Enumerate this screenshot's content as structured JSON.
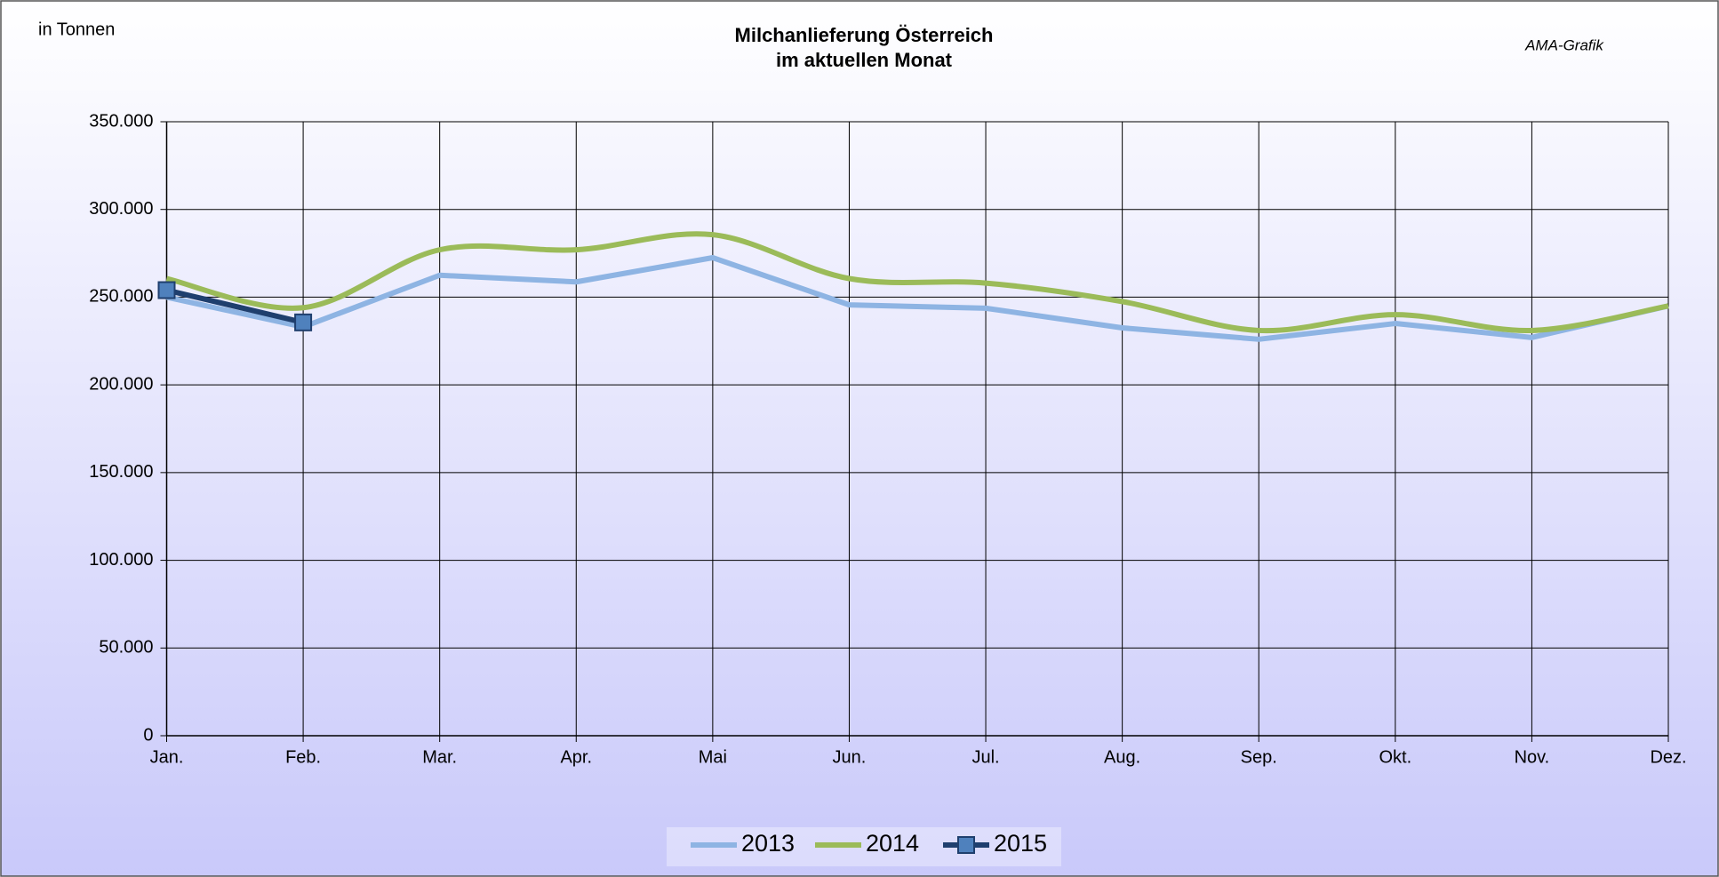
{
  "chart_data": {
    "type": "line",
    "title": [
      "Milchanlieferung Österreich",
      "im aktuellen Monat"
    ],
    "y_label": "in Tonnen",
    "annotation": "AMA-Grafik",
    "categories": [
      "Jan.",
      "Feb.",
      "Mar.",
      "Apr.",
      "Mai",
      "Jun.",
      "Jul.",
      "Aug.",
      "Sep.",
      "Okt.",
      "Nov.",
      "Dez."
    ],
    "series": [
      {
        "name": "2013",
        "color": "#8eb4e3",
        "smooth": false,
        "values": [
          250000,
          233000,
          262500,
          258700,
          272500,
          245600,
          243700,
          232500,
          226000,
          235000,
          227000,
          245000
        ]
      },
      {
        "name": "2014",
        "color": "#9bbb59",
        "smooth": true,
        "values": [
          260600,
          244000,
          277000,
          277000,
          285600,
          260600,
          258000,
          247500,
          231000,
          240000,
          231000,
          245000
        ]
      },
      {
        "name": "2015",
        "color": "#1f3f6e",
        "marker_color": "#4f81bd",
        "smooth": false,
        "marker": "square",
        "values": [
          254000,
          235600,
          null,
          null,
          null,
          null,
          null,
          null,
          null,
          null,
          null,
          null
        ]
      }
    ],
    "ylim": [
      0,
      350000
    ],
    "yticks": [
      0,
      {
        "value": 50000,
        "label": "50.000"
      },
      {
        "value": 100000,
        "label": "100.000"
      },
      {
        "value": 150000,
        "label": "150.000"
      },
      {
        "value": 200000,
        "label": "200.000"
      },
      {
        "value": 250000,
        "label": "250.000"
      },
      {
        "value": 300000,
        "label": "300.000"
      },
      {
        "value": 350000,
        "label": "350.000"
      }
    ],
    "grid": true,
    "legend": "bottom"
  }
}
